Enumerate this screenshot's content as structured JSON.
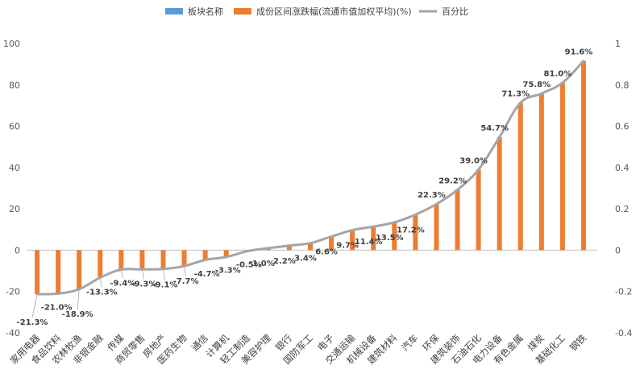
{
  "chart_data": {
    "type": "bar",
    "legend": {
      "position": "top",
      "items": [
        {
          "name": "板块名称",
          "color": "#5B9BD5",
          "kind": "bar"
        },
        {
          "name": "成份区间涨跌幅(流通市值加权平均)(%)",
          "color": "#ED7D31",
          "kind": "bar"
        },
        {
          "name": "百分比",
          "color": "#A5A5A5",
          "kind": "line"
        }
      ]
    },
    "categories": [
      "家用电器",
      "食品饮料",
      "农林牧渔",
      "非银金融",
      "传媒",
      "商贸零售",
      "房地产",
      "医药生物",
      "通信",
      "计算机",
      "轻工制造",
      "美容护理",
      "银行",
      "国防军工",
      "电子",
      "交通运输",
      "机械设备",
      "建筑材料",
      "汽车",
      "环保",
      "建筑装饰",
      "石油石化",
      "电力设备",
      "有色金属",
      "煤炭",
      "基础化工",
      "钢铁"
    ],
    "series": [
      {
        "name": "成份区间涨跌幅(流通市值加权平均)(%)",
        "axis": "left",
        "color": "#ED7D31",
        "values": [
          -21.3,
          -21.0,
          -18.9,
          -13.3,
          -9.4,
          -9.3,
          -9.1,
          -7.7,
          -4.7,
          -3.3,
          -0.5,
          1.0,
          2.2,
          3.4,
          6.6,
          9.7,
          11.4,
          13.5,
          17.2,
          22.3,
          29.2,
          39.0,
          54.7,
          71.3,
          75.8,
          81.0,
          91.6
        ],
        "labels": [
          "-21.3%",
          "-21.0%",
          "-18.9%",
          "-13.3%",
          "-9.4%",
          "-9.3%",
          "-9.1%",
          "-7.7%",
          "-4.7%",
          "-3.3%",
          "-0.5%",
          "1.0%",
          "2.2%",
          "3.4%",
          "6.6%",
          "9.7%",
          "11.4%",
          "13.5%",
          "17.2%",
          "22.3%",
          "29.2%",
          "39.0%",
          "54.7%",
          "71.3%",
          "75.8%",
          "81.0%",
          "91.6%"
        ]
      },
      {
        "name": "百分比",
        "axis": "right",
        "color": "#A5A5A5",
        "values": [
          -0.213,
          -0.21,
          -0.189,
          -0.133,
          -0.094,
          -0.093,
          -0.091,
          -0.077,
          -0.047,
          -0.033,
          -0.005,
          0.01,
          0.022,
          0.034,
          0.066,
          0.097,
          0.114,
          0.135,
          0.172,
          0.223,
          0.292,
          0.39,
          0.547,
          0.713,
          0.758,
          0.81,
          0.916
        ]
      }
    ],
    "y_left": {
      "ylim": [
        -40,
        100
      ],
      "ticks": [
        "-40",
        "-20",
        "0",
        "20",
        "40",
        "60",
        "80",
        "100"
      ],
      "tick_values": [
        -40,
        -20,
        0,
        20,
        40,
        60,
        80,
        100
      ]
    },
    "y_right": {
      "ylim": [
        -0.4,
        1.0
      ],
      "ticks": [
        "-0.4",
        "-0.2",
        "0",
        "0.2",
        "0.4",
        "0.6",
        "0.8",
        "1"
      ],
      "tick_values": [
        -0.4,
        -0.2,
        0,
        0.2,
        0.4,
        0.6,
        0.8,
        1.0
      ]
    },
    "title": "",
    "xlabel": "",
    "ylabel": "",
    "grid": false
  }
}
